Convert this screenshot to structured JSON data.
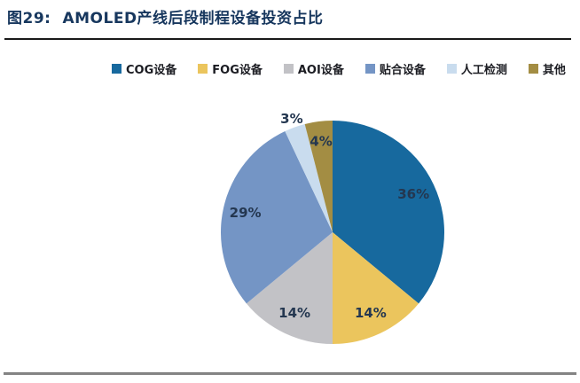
{
  "page": {
    "figure_label": "图29:",
    "title": "AMOLED产线后段制程设备投资占比"
  },
  "colors": {
    "title": "#17375E",
    "top_rule": "#1a1a1a",
    "bottom_rule": "#8a8a8a",
    "pie_label_text": "#243750"
  },
  "chart_data": {
    "type": "pie",
    "title": "AMOLED产线后段制程设备投资占比",
    "unit": "%",
    "direction": "clockwise",
    "start_angle_deg": 0,
    "legend_position": "top",
    "slices": [
      {
        "label": "COG设备",
        "value": 36,
        "pct_label": "36%",
        "color": "#17699E",
        "label_r": 0.8
      },
      {
        "label": "FOG设备",
        "value": 14,
        "pct_label": "14%",
        "color": "#EBC55D",
        "label_r": 0.8
      },
      {
        "label": "AOI设备",
        "value": 14,
        "pct_label": "14%",
        "color": "#C2C2C6",
        "label_r": 0.8
      },
      {
        "label": "贴合设备",
        "value": 29,
        "pct_label": "29%",
        "color": "#7495C5",
        "label_r": 0.8
      },
      {
        "label": "人工检测",
        "value": 3,
        "pct_label": "3%",
        "color": "#C9DCEE",
        "label_r": 1.08
      },
      {
        "label": "其他",
        "value": 4,
        "pct_label": "4%",
        "color": "#A38D43",
        "label_r": 0.82
      }
    ]
  }
}
